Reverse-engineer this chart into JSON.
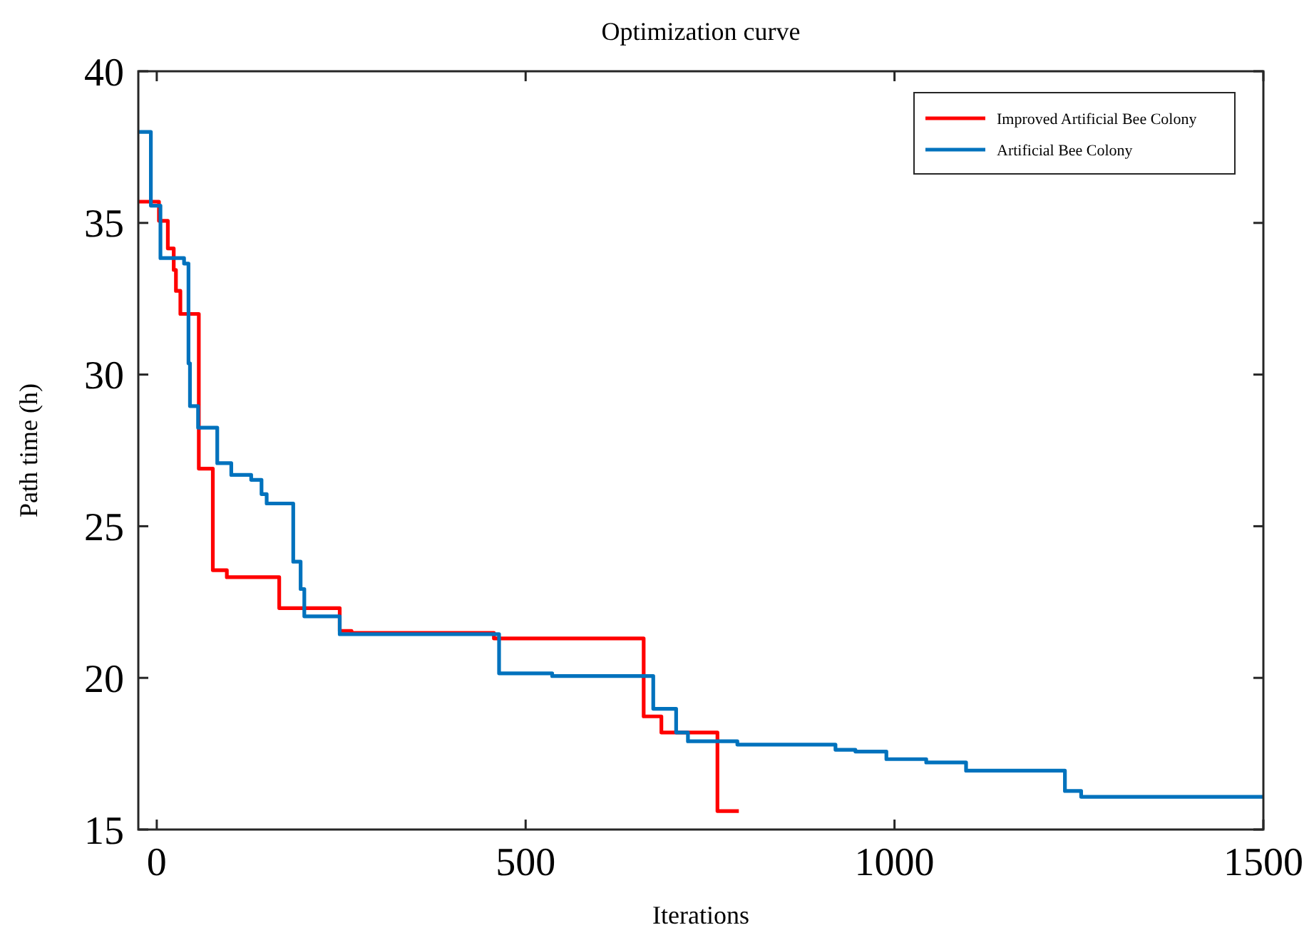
{
  "chart_data": {
    "type": "step",
    "title": "Optimization curve",
    "xlabel": "Iterations",
    "ylabel": "Path time (h)",
    "xlim": [
      -25,
      1500
    ],
    "xticks": [
      0,
      500,
      1000,
      1500
    ],
    "ylim": [
      15,
      40
    ],
    "yticks": [
      15,
      20,
      25,
      30,
      35,
      40
    ],
    "grid": false,
    "legend": "top right",
    "series": [
      {
        "name": "Improved Artificial Bee Colony",
        "color": "#ff0000",
        "x": [
          -25,
          3,
          15,
          23,
          26,
          32,
          57,
          76,
          95,
          166,
          248,
          264,
          457,
          660,
          684,
          760,
          789
        ],
        "values": [
          35.7,
          35.07,
          34.16,
          33.45,
          32.76,
          32.0,
          26.9,
          23.55,
          23.32,
          22.3,
          21.55,
          21.48,
          21.3,
          18.73,
          18.2,
          15.61,
          15.61
        ]
      },
      {
        "name": "Artificial Bee Colony",
        "color": "#0072bd",
        "x": [
          -25,
          -8,
          5,
          37,
          43,
          45,
          56,
          82,
          101,
          128,
          142,
          149,
          185,
          195,
          200,
          248,
          464,
          536,
          673,
          704,
          720,
          787,
          920,
          947,
          989,
          1043,
          1097,
          1231,
          1253,
          1500
        ],
        "values": [
          38.0,
          35.57,
          33.84,
          33.66,
          30.37,
          28.96,
          28.25,
          27.08,
          26.69,
          26.53,
          26.06,
          25.75,
          23.83,
          22.93,
          22.03,
          21.44,
          20.15,
          20.06,
          18.98,
          18.2,
          17.91,
          17.8,
          17.63,
          17.57,
          17.32,
          17.21,
          16.94,
          16.27,
          16.08,
          16.08
        ]
      }
    ]
  }
}
